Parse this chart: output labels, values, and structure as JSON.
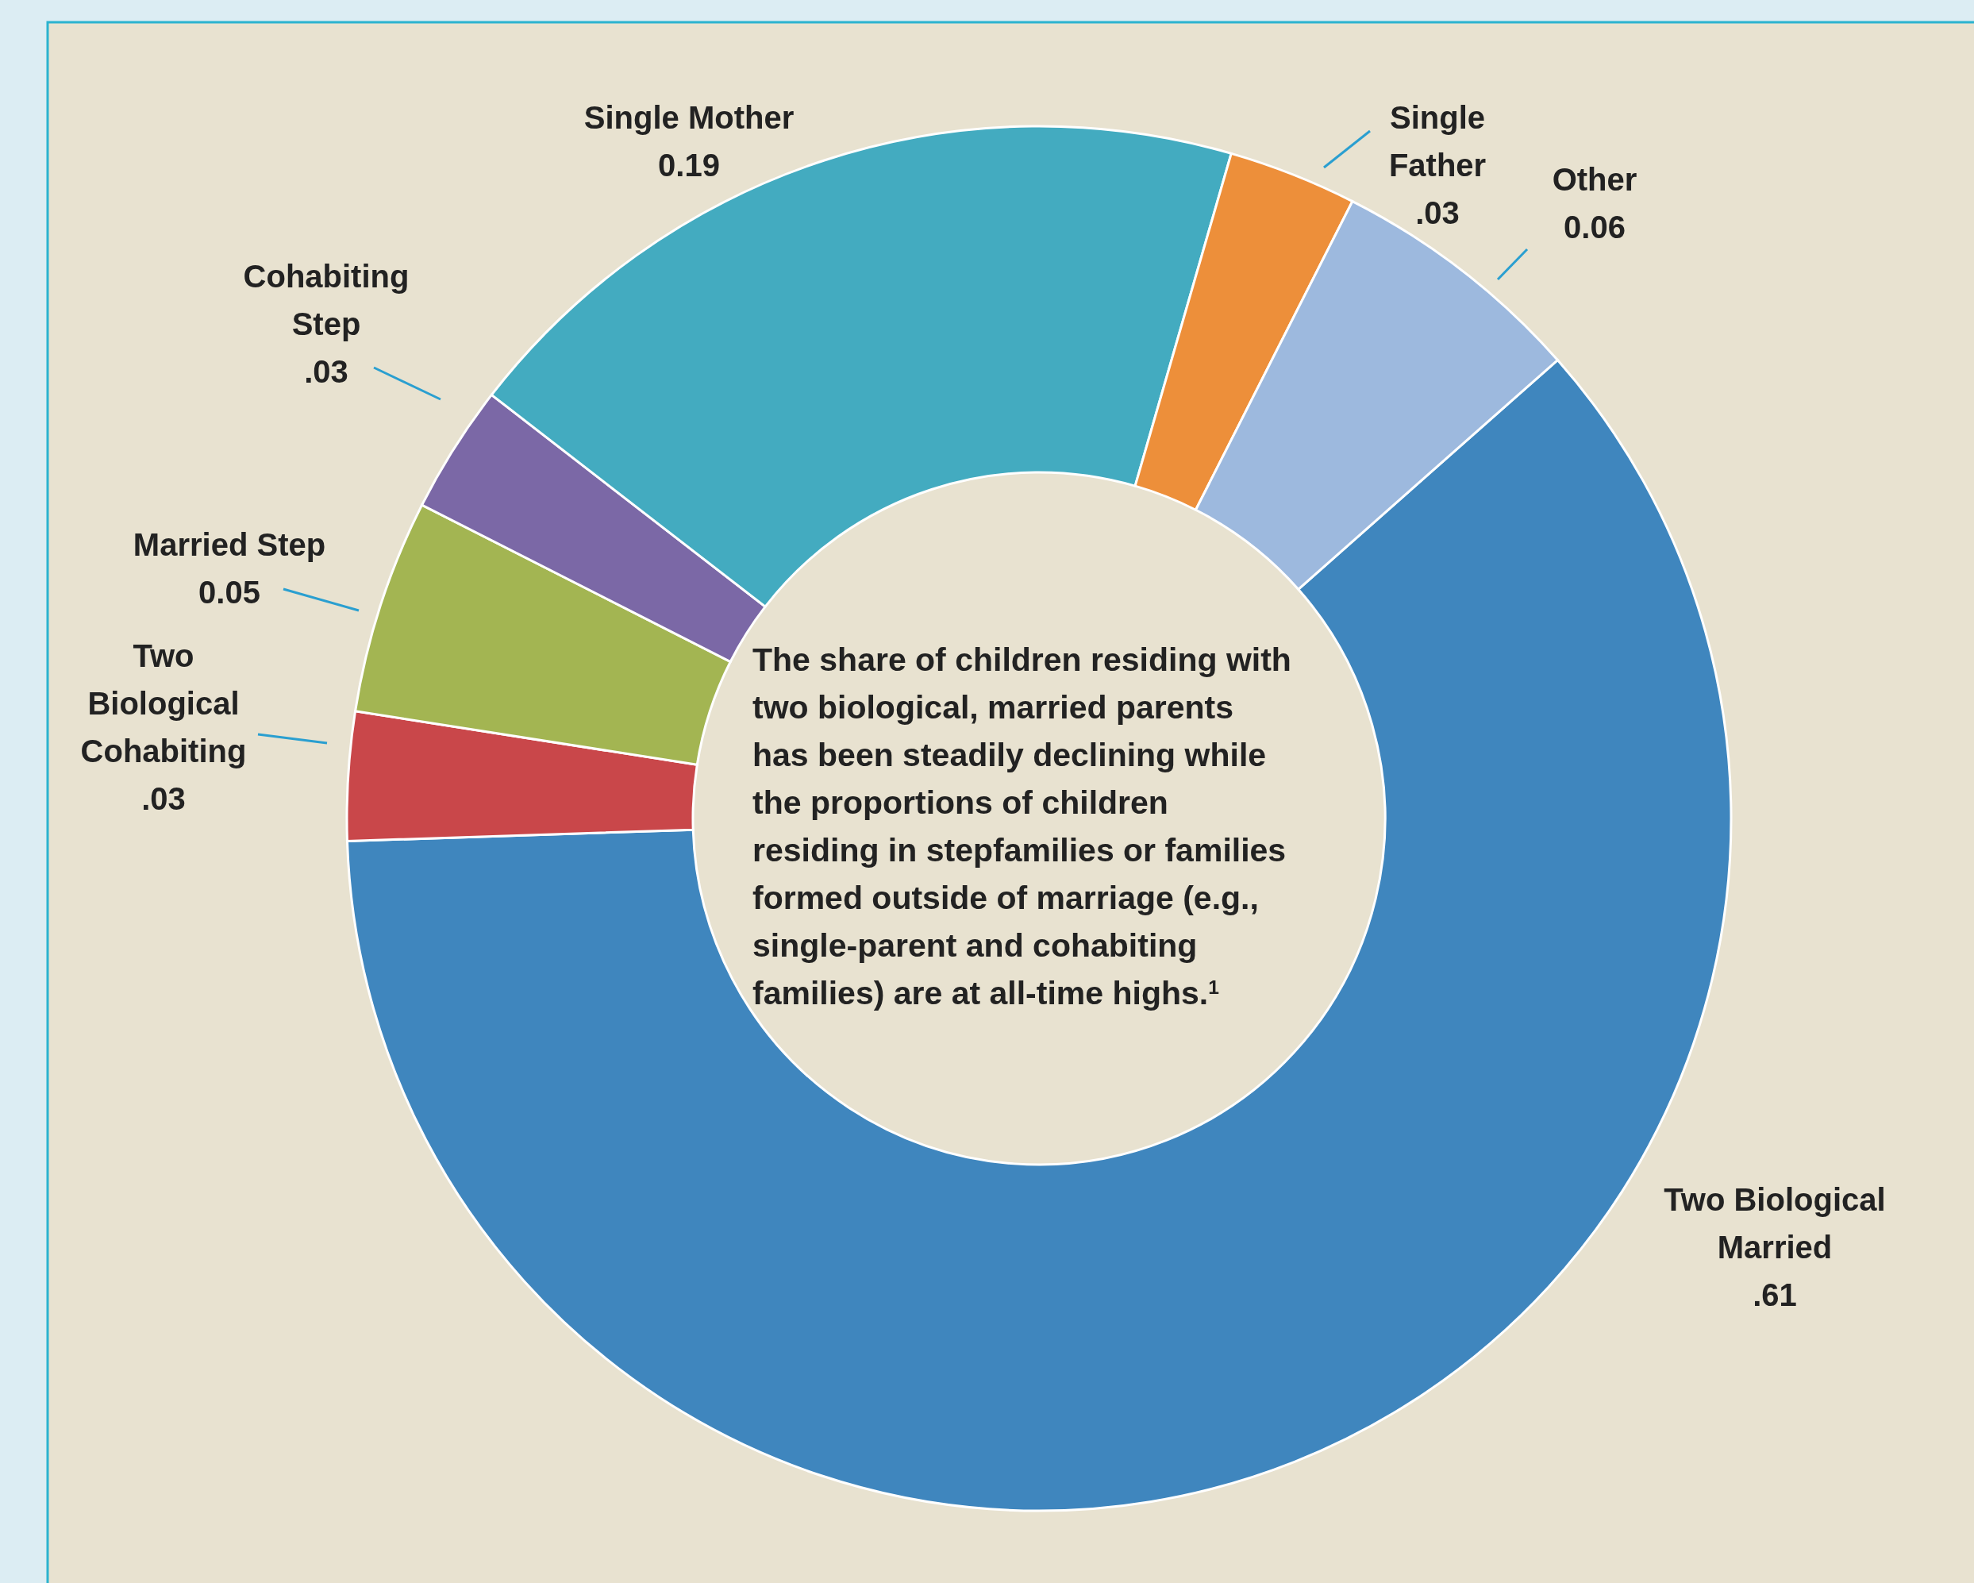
{
  "chart_data": {
    "type": "donut",
    "categories": [
      "Two Biological Married",
      "Two Biological Cohabiting",
      "Married Step",
      "Cohabiting Step",
      "Single Mother",
      "Single Father",
      "Other"
    ],
    "values": [
      0.61,
      0.03,
      0.05,
      0.03,
      0.19,
      0.03,
      0.06
    ],
    "value_labels": [
      ".61",
      ".03",
      "0.05",
      ".03",
      "0.19",
      ".03",
      "0.06"
    ],
    "colors": [
      "#3f86be",
      "#c9474a",
      "#a3b552",
      "#7b68a6",
      "#43abc0",
      "#ed8f3a",
      "#9db9de"
    ],
    "annotations": [
      "The share of children residing with\ntwo biological, married parents\nhas been steadily declining while\nthe proportions of children\nresiding in stepfamilies or families\nformed outside of marriage (e.g.,\nsingle-parent and cohabiting\nfamilies) are at all-time highs.$^{1}$"
    ]
  }
}
